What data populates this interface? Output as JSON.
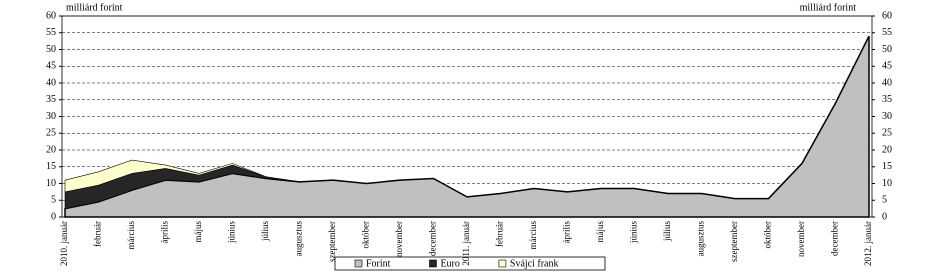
{
  "chart_data": {
    "type": "stacked-area",
    "ylabel": "milliárd forint",
    "y2label": "milliárd forint",
    "categories": [
      "2010. január",
      "február",
      "március",
      "április",
      "május",
      "június",
      "július",
      "augusztus",
      "szeptember",
      "október",
      "november",
      "december",
      "2011. január",
      "február",
      "március",
      "április",
      "május",
      "június",
      "július",
      "augusztus",
      "szeptember",
      "október",
      "november",
      "december",
      "2012. január"
    ],
    "series": [
      {
        "name": "Forint",
        "color": "#c0c0c0",
        "values": [
          2.5,
          4.5,
          8,
          11,
          10.5,
          13,
          11.5,
          10.5,
          11,
          10,
          11,
          11.5,
          6,
          7,
          8.5,
          7.5,
          8.5,
          8.5,
          7,
          7,
          5.5,
          5.5,
          16,
          34,
          54
        ]
      },
      {
        "name": "Euro",
        "color": "#262626",
        "values": [
          5,
          5,
          5,
          3.5,
          2,
          2.5,
          0.5,
          0,
          0,
          0,
          0,
          0,
          0,
          0,
          0,
          0,
          0,
          0,
          0,
          0,
          0,
          0,
          0,
          0,
          0
        ]
      },
      {
        "name": "Svájci frank",
        "color": "#ffffcc",
        "values": [
          3.5,
          4,
          4,
          1,
          0.5,
          0.5,
          0,
          0,
          0,
          0,
          0,
          0,
          0,
          0,
          0,
          0,
          0,
          0,
          0,
          0,
          0,
          0,
          0,
          0,
          0
        ]
      }
    ],
    "ylim": [
      0,
      60
    ],
    "yticks": [
      0,
      5,
      10,
      15,
      20,
      25,
      30,
      35,
      40,
      45,
      50,
      55,
      60
    ],
    "y2lim": [
      0,
      60
    ],
    "y2ticks": [
      0,
      5,
      10,
      15,
      20,
      25,
      30,
      35,
      40,
      45,
      50,
      55,
      60
    ],
    "grid": true
  }
}
